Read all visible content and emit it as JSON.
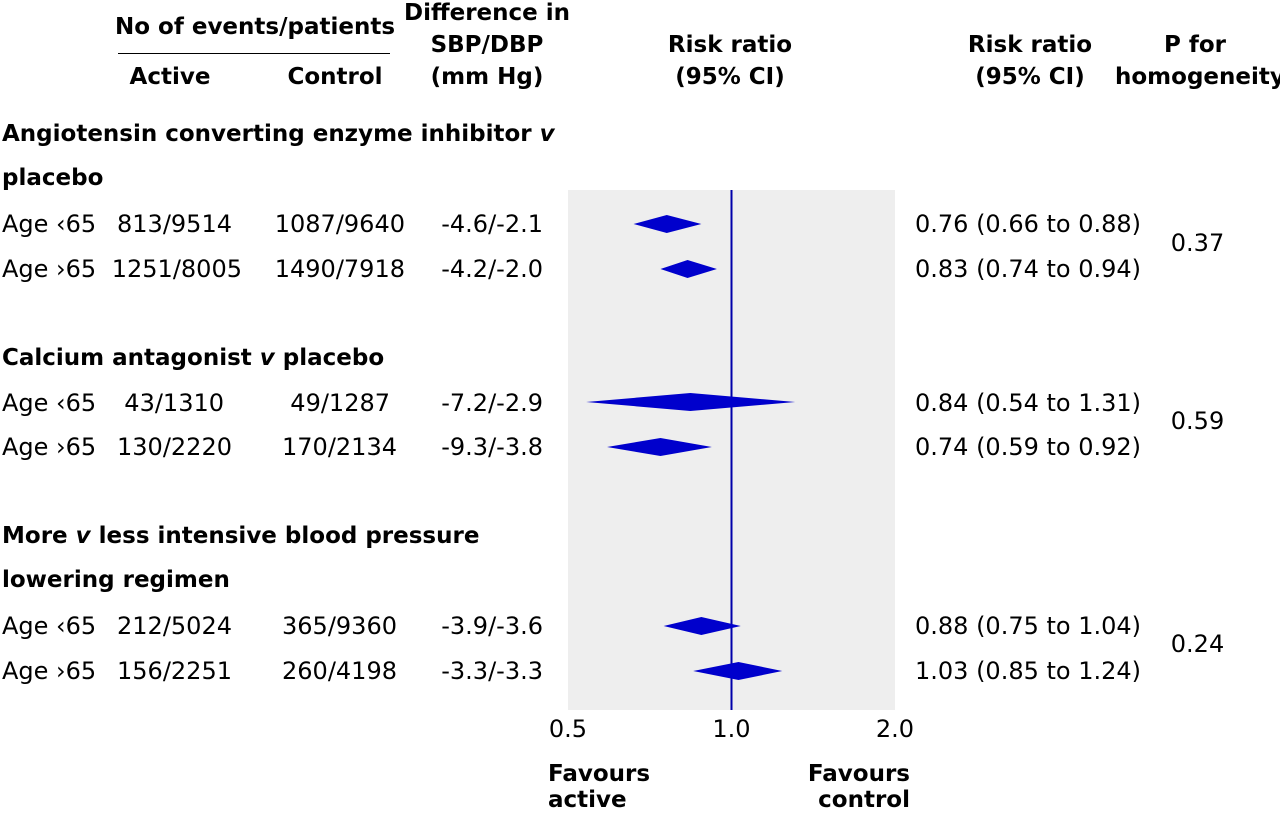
{
  "headers": {
    "events": "No of events/patients",
    "active": "Active",
    "control": "Control",
    "difference": [
      "Difference in",
      "SBP/DBP",
      "(mm Hg)"
    ],
    "rr_plot": [
      "Risk ratio",
      "(95% CI)"
    ],
    "rr_text": [
      "Risk ratio",
      "(95% CI)"
    ],
    "p": [
      "P for",
      "homogeneity"
    ]
  },
  "groups": [
    {
      "title": [
        "Angiotensin converting enzyme inhibitor ",
        "v",
        " placebo"
      ],
      "p_value": "0.37",
      "rows": [
        {
          "label": "Age ‹65",
          "active": "813/9514",
          "control": "1087/9640",
          "diff": "-4.6/-2.1",
          "rr_text": "0.76 (0.66 to 0.88)"
        },
        {
          "label": "Age ›65",
          "active": "1251/8005",
          "control": "1490/7918",
          "diff": "-4.2/-2.0",
          "rr_text": "0.83 (0.74 to 0.94)"
        }
      ]
    },
    {
      "title": [
        "Calcium antagonist ",
        "v",
        " placebo"
      ],
      "p_value": "0.59",
      "rows": [
        {
          "label": "Age ‹65",
          "active": "43/1310",
          "control": "49/1287",
          "diff": "-7.2/-2.9",
          "rr_text": "0.84 (0.54 to 1.31)"
        },
        {
          "label": "Age ›65",
          "active": "130/2220",
          "control": "170/2134",
          "diff": "-9.3/-3.8",
          "rr_text": "0.74 (0.59 to 0.92)"
        }
      ]
    },
    {
      "title": [
        "More ",
        "v",
        " less intensive blood pressure lowering regimen"
      ],
      "p_value": "0.24",
      "rows": [
        {
          "label": "Age ‹65",
          "active": "212/5024",
          "control": "365/9360",
          "diff": "-3.9/-3.6",
          "rr_text": "0.88 (0.75 to 1.04)"
        },
        {
          "label": "Age ›65",
          "active": "156/2251",
          "control": "260/4198",
          "diff": "-3.3/-3.3",
          "rr_text": "1.03 (0.85 to 1.24)"
        }
      ]
    }
  ],
  "favours": {
    "left": [
      "Favours",
      "active"
    ],
    "right": [
      "Favours",
      "control"
    ]
  },
  "colors": {
    "diamond": "#0000cc",
    "ref_line": "#0000aa",
    "plot_bg": "#eeeeee"
  },
  "chart_data": {
    "type": "forest",
    "x_scale": "log",
    "xlim": [
      0.5,
      2.0
    ],
    "x_ticks": [
      0.5,
      1.0,
      2.0
    ],
    "x_tick_labels": [
      "0.5",
      "1.0",
      "2.0"
    ],
    "reference_value": 1.0,
    "series": [
      {
        "estimate": 0.76,
        "lower": 0.66,
        "upper": 0.88
      },
      {
        "estimate": 0.83,
        "lower": 0.74,
        "upper": 0.94
      },
      {
        "estimate": 0.84,
        "lower": 0.54,
        "upper": 1.31
      },
      {
        "estimate": 0.74,
        "lower": 0.59,
        "upper": 0.92
      },
      {
        "estimate": 0.88,
        "lower": 0.75,
        "upper": 1.04
      },
      {
        "estimate": 1.03,
        "lower": 0.85,
        "upper": 1.24
      }
    ]
  }
}
